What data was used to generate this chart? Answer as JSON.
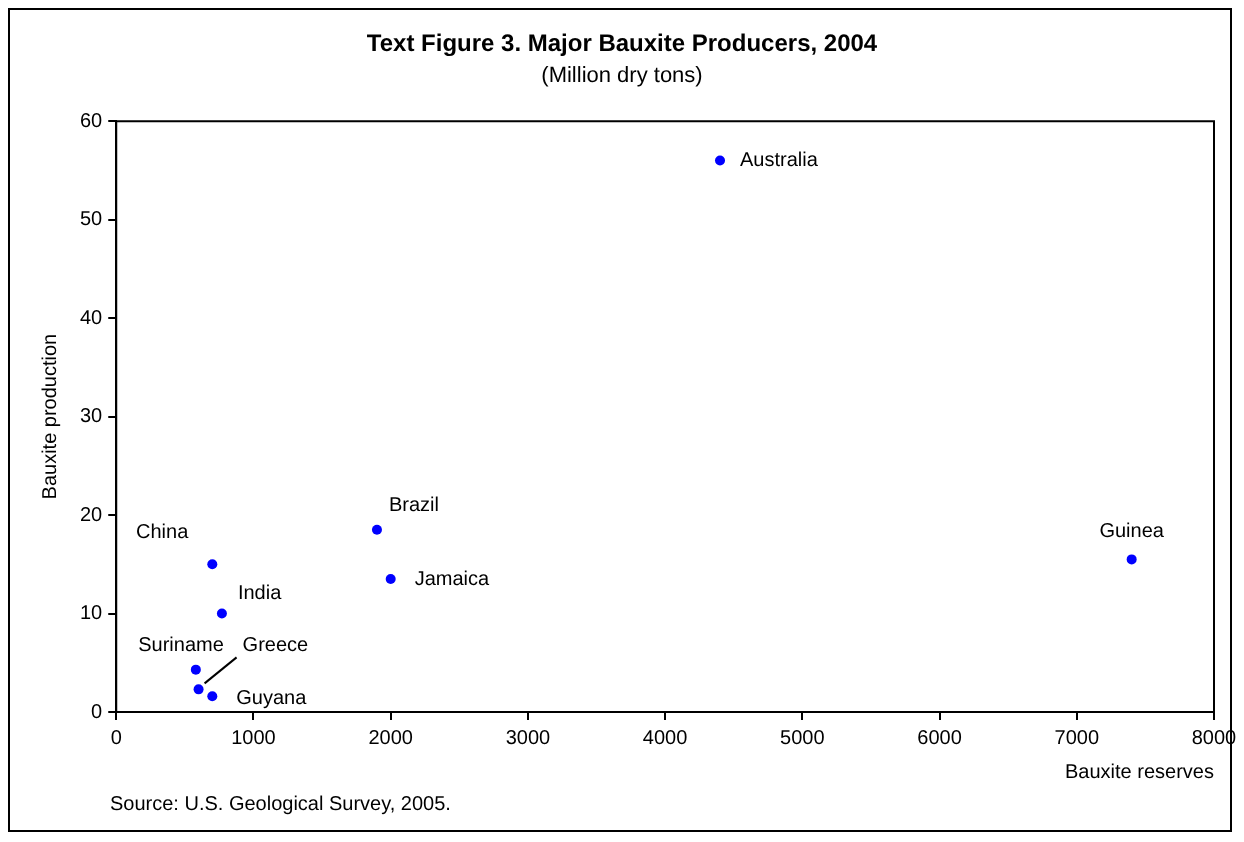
{
  "chart_data": {
    "type": "scatter",
    "title": "Text Figure 3. Major Bauxite Producers, 2004",
    "subtitle": "(Million dry tons)",
    "xlabel": "Bauxite reserves",
    "ylabel": "Bauxite production",
    "x": [
      4400,
      7400,
      1900,
      2000,
      700,
      770,
      580,
      600,
      700
    ],
    "values": [
      56,
      15.5,
      18.5,
      13.5,
      15,
      10,
      4.3,
      2.3,
      1.6
    ],
    "color": "#0000ff",
    "marker": "circle",
    "grid": false,
    "legend": false,
    "xlim": [
      0,
      8000
    ],
    "xticks": [
      0,
      1000,
      2000,
      3000,
      4000,
      5000,
      6000,
      7000,
      8000
    ],
    "ylim": [
      0,
      60
    ],
    "yticks": [
      0,
      10,
      20,
      30,
      40,
      50,
      60
    ],
    "annotations": [
      {
        "text": "Australia",
        "x": 4400,
        "y": 56
      },
      {
        "text": "Guinea",
        "x": 7400,
        "y": 15.5
      },
      {
        "text": "Brazil",
        "x": 1900,
        "y": 18.5
      },
      {
        "text": "Jamaica",
        "x": 2000,
        "y": 13.5
      },
      {
        "text": "China",
        "x": 700,
        "y": 15
      },
      {
        "text": "India",
        "x": 770,
        "y": 10
      },
      {
        "text": "Suriname",
        "x": 580,
        "y": 4.3
      },
      {
        "text": "Greece",
        "x": 600,
        "y": 2.3
      },
      {
        "text": "Guyana",
        "x": 700,
        "y": 1.6
      },
      "Source: U.S. Geological Survey, 2005."
    ]
  }
}
